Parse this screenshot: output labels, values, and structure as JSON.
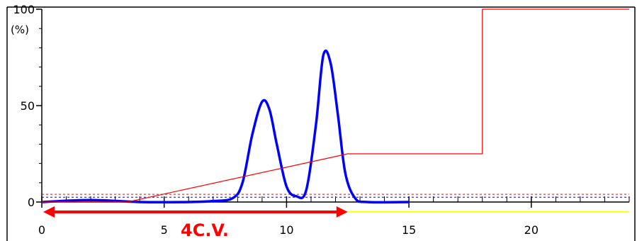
{
  "chart_data": {
    "type": "line",
    "xlim": [
      0,
      24
    ],
    "ylim": [
      0,
      100
    ],
    "x_ticks": [
      0,
      5,
      10,
      15,
      20
    ],
    "y_ticks": [
      0,
      50,
      100
    ],
    "y_unit": "(%)",
    "grid": false,
    "series": [
      {
        "color": "#0000ff",
        "x": [
          0,
          2,
          4,
          6,
          7,
          7.8,
          8.2,
          8.6,
          9.0,
          9.3,
          9.6,
          10.0,
          10.4,
          10.8,
          11.2,
          11.5,
          11.8,
          12.1,
          12.4,
          12.8,
          13.3,
          15
        ],
        "y": [
          0,
          1,
          0,
          0,
          0.5,
          2,
          10,
          35,
          52,
          48,
          30,
          8,
          3,
          6,
          40,
          76,
          72,
          45,
          15,
          2,
          0,
          0
        ]
      },
      {
        "color": "#ff0000",
        "x": [
          0,
          3.5,
          12.5,
          18,
          18,
          24
        ],
        "y": [
          0,
          0,
          25,
          25,
          100,
          100
        ]
      },
      {
        "color": "#ffff00",
        "x": [
          12.5,
          24
        ],
        "y": [
          -5,
          -5
        ]
      }
    ],
    "reference_lines": [
      {
        "color": "#ff0000",
        "y": 4,
        "style": "dashed"
      },
      {
        "color": "#0000ff",
        "y": 2.5,
        "style": "dashed"
      }
    ],
    "annotation": {
      "text": "4C.V.",
      "color": "#ff0000",
      "x_start": 0,
      "x_end": 12.5
    }
  }
}
